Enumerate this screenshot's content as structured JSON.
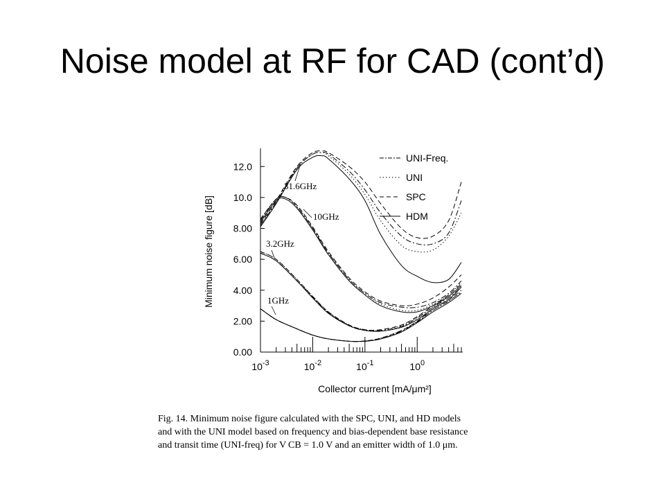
{
  "slide": {
    "title": "Noise model at RF for CAD (cont’d)"
  },
  "caption": {
    "line1": "Fig. 14.    Minimum noise figure calculated with the SPC, UNI, and HD models",
    "line2": "and with the UNI model based on frequency and bias-dependent base resistance",
    "line3": "and transit time (UNI-freq) for V CB = 1.0 V and an emitter width of 1.0 μm."
  },
  "chart_data": {
    "type": "line",
    "title": "",
    "xlabel": "Collector current  [mA/μm²]",
    "ylabel": "Minimum noise figure  [dB]",
    "xscale": "log",
    "xlim": [
      0.001,
      7
    ],
    "ylim": [
      0,
      13
    ],
    "xticks": [
      "10^-3",
      "10^-2",
      "10^-1",
      "10^0"
    ],
    "yticks": [
      "0.00",
      "2.00",
      "4.00",
      "6.00",
      "8.00",
      "10.0",
      "12.0"
    ],
    "grid": false,
    "legend_position": "top-right",
    "legend": [
      {
        "label": "UNI-Freq.",
        "dash": "dashdot"
      },
      {
        "label": "UNI",
        "dash": "dotted"
      },
      {
        "label": "SPC",
        "dash": "dashed"
      },
      {
        "label": "HDM",
        "dash": "solid"
      }
    ],
    "annotations": [
      "31.6GHz",
      "10GHz",
      "3.2GHz",
      "1GHz"
    ],
    "curves": [
      {
        "frequency": "1GHz",
        "x": [
          0.001,
          0.002,
          0.005,
          0.01,
          0.02,
          0.05,
          0.1,
          0.2,
          0.5,
          1,
          2,
          4,
          7
        ],
        "HDM": [
          2.8,
          2.1,
          1.5,
          1.1,
          0.85,
          0.7,
          0.7,
          0.85,
          1.3,
          1.9,
          2.6,
          3.2,
          3.8
        ],
        "SPC": [
          2.8,
          2.1,
          1.5,
          1.1,
          0.85,
          0.7,
          0.72,
          0.9,
          1.4,
          2.0,
          2.8,
          3.4,
          4.0
        ],
        "UNI": [
          2.8,
          2.1,
          1.5,
          1.1,
          0.85,
          0.7,
          0.72,
          0.9,
          1.4,
          2.0,
          2.7,
          3.3,
          3.9
        ],
        "UNI-Freq.": [
          2.8,
          2.1,
          1.5,
          1.1,
          0.85,
          0.7,
          0.7,
          0.85,
          1.35,
          1.95,
          2.7,
          3.3,
          3.9
        ]
      },
      {
        "frequency": "3.2GHz",
        "x": [
          0.001,
          0.002,
          0.005,
          0.01,
          0.02,
          0.05,
          0.1,
          0.2,
          0.5,
          1,
          2,
          4,
          7
        ],
        "HDM": [
          6.4,
          5.9,
          4.6,
          3.5,
          2.5,
          1.7,
          1.4,
          1.35,
          1.6,
          2.1,
          2.8,
          3.4,
          4.2
        ],
        "SPC": [
          6.5,
          6.0,
          4.7,
          3.6,
          2.6,
          1.75,
          1.45,
          1.45,
          1.75,
          2.3,
          3.0,
          3.7,
          4.4
        ],
        "UNI": [
          6.5,
          6.0,
          4.7,
          3.6,
          2.6,
          1.75,
          1.45,
          1.4,
          1.7,
          2.25,
          2.9,
          3.6,
          4.3
        ],
        "UNI-Freq.": [
          6.4,
          5.9,
          4.6,
          3.55,
          2.55,
          1.7,
          1.4,
          1.4,
          1.65,
          2.2,
          2.9,
          3.5,
          4.2
        ]
      },
      {
        "frequency": "10GHz",
        "x": [
          0.001,
          0.002,
          0.003,
          0.005,
          0.01,
          0.02,
          0.05,
          0.1,
          0.2,
          0.5,
          1,
          2,
          4,
          7
        ],
        "HDM": [
          8.4,
          9.8,
          9.9,
          9.3,
          7.9,
          6.3,
          4.6,
          3.7,
          3.0,
          2.6,
          2.6,
          3.0,
          3.6,
          4.3
        ],
        "SPC": [
          8.6,
          9.9,
          10.0,
          9.5,
          8.1,
          6.5,
          4.8,
          3.9,
          3.3,
          3.0,
          3.1,
          3.5,
          4.2,
          5.0
        ],
        "UNI": [
          8.6,
          9.9,
          10.0,
          9.4,
          8.0,
          6.4,
          4.7,
          3.8,
          3.1,
          2.7,
          2.7,
          3.1,
          3.7,
          4.5
        ],
        "UNI-Freq.": [
          8.5,
          9.9,
          10.0,
          9.4,
          8.0,
          6.4,
          4.7,
          3.8,
          3.2,
          2.9,
          2.9,
          3.2,
          3.8,
          4.6
        ]
      },
      {
        "frequency": "31.6GHz",
        "x": [
          0.001,
          0.002,
          0.005,
          0.01,
          0.015,
          0.02,
          0.05,
          0.1,
          0.2,
          0.5,
          1,
          2,
          4,
          7
        ],
        "HDM": [
          8.1,
          9.6,
          11.8,
          12.6,
          12.7,
          12.5,
          11.2,
          9.8,
          7.6,
          5.6,
          4.9,
          4.5,
          4.7,
          5.8
        ],
        "SPC": [
          8.3,
          9.8,
          12.0,
          12.9,
          13.0,
          12.9,
          12.0,
          11.0,
          9.6,
          8.0,
          7.4,
          7.5,
          8.5,
          11.0
        ],
        "UNI": [
          8.2,
          9.7,
          11.9,
          12.8,
          12.9,
          12.7,
          11.5,
          10.2,
          8.5,
          6.9,
          6.5,
          6.6,
          7.5,
          9.0
        ],
        "UNI-Freq.": [
          8.2,
          9.7,
          11.9,
          12.8,
          12.9,
          12.8,
          11.7,
          10.5,
          9.0,
          7.5,
          7.0,
          7.0,
          7.7,
          9.8
        ]
      }
    ]
  }
}
